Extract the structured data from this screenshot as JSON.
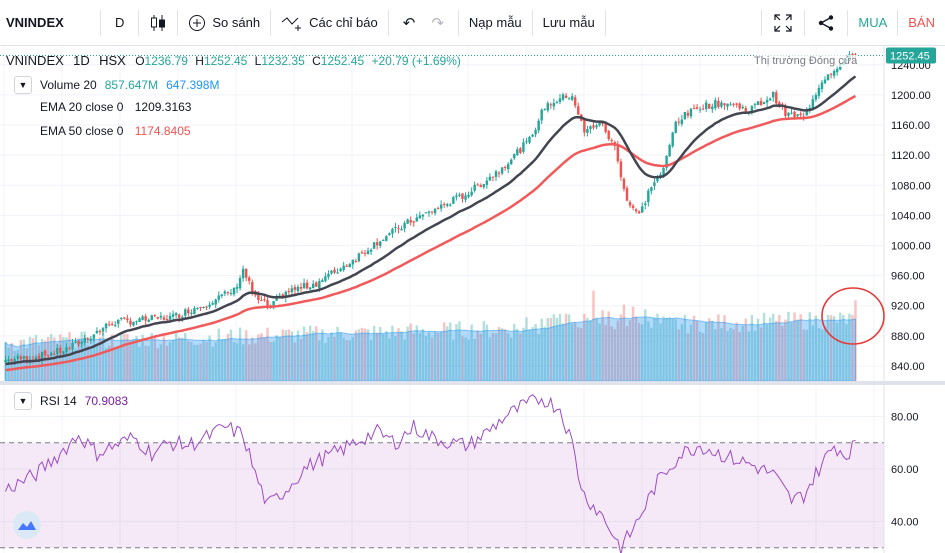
{
  "toolbar": {
    "symbol": "VNINDEX",
    "interval": "D",
    "compare": "So sánh",
    "indicators": "Các chỉ báo",
    "load_template": "Nạp mẫu",
    "save_template": "Lưu mẫu",
    "buy": "MUA",
    "sell": "BÁN"
  },
  "legend": {
    "symbol": "VNINDEX",
    "interval": "1D",
    "exchange": "HSX",
    "open_label": "O",
    "open": "1236.79",
    "high_label": "H",
    "high": "1252.45",
    "low_label": "L",
    "low": "1232.35",
    "close_label": "C",
    "close": "1252.45",
    "change": "+20.79 (+1.69%)",
    "volume_label": "Volume 20",
    "volume_value": "857.647M",
    "volume_ma": "647.398M",
    "ema20_label": "EMA 20 close 0",
    "ema20_value": "1209.3163",
    "ema50_label": "EMA 50 close 0",
    "ema50_value": "1174.8405",
    "rsi_label": "RSI 14",
    "rsi_value": "70.9083",
    "market_status": "Thị trường Đóng cửa"
  },
  "colors": {
    "up": "#26a69a",
    "down": "#ef5350",
    "ema20": "#434651",
    "ema50": "#f05a5a",
    "vol_ma": "#2196f3",
    "rsi": "#9c4cc3",
    "last_price_bg": "#26a69a",
    "annotation": "#e53935"
  },
  "chart_data": [
    {
      "type": "candlestick",
      "name": "VNINDEX",
      "price_axis": {
        "ticks": [
          840,
          880,
          920,
          960,
          1000,
          1040,
          1080,
          1120,
          1160,
          1200,
          1240
        ],
        "range": [
          820,
          1265
        ]
      },
      "last_price_label": "1252.45",
      "anchors": [
        [
          0,
          848
        ],
        [
          10,
          852
        ],
        [
          20,
          862
        ],
        [
          28,
          880
        ],
        [
          35,
          898
        ],
        [
          42,
          900
        ],
        [
          55,
          905
        ],
        [
          65,
          922
        ],
        [
          75,
          940
        ],
        [
          78,
          968
        ],
        [
          82,
          930
        ],
        [
          87,
          918
        ],
        [
          92,
          938
        ],
        [
          102,
          950
        ],
        [
          112,
          975
        ],
        [
          122,
          1005
        ],
        [
          132,
          1030
        ],
        [
          142,
          1050
        ],
        [
          152,
          1070
        ],
        [
          162,
          1100
        ],
        [
          172,
          1140
        ],
        [
          177,
          1185
        ],
        [
          182,
          1195
        ],
        [
          186,
          1200
        ],
        [
          190,
          1150
        ],
        [
          195,
          1165
        ],
        [
          200,
          1130
        ],
        [
          204,
          1060
        ],
        [
          208,
          1040
        ],
        [
          212,
          1080
        ],
        [
          216,
          1100
        ],
        [
          220,
          1165
        ],
        [
          228,
          1185
        ],
        [
          236,
          1190
        ],
        [
          244,
          1180
        ],
        [
          252,
          1200
        ],
        [
          256,
          1175
        ],
        [
          262,
          1170
        ],
        [
          268,
          1220
        ],
        [
          272,
          1235
        ],
        [
          278,
          1252
        ]
      ]
    },
    {
      "type": "line",
      "name": "EMA 20",
      "last_value": 1209.3163
    },
    {
      "type": "line",
      "name": "EMA 50",
      "last_value": 1174.8405
    },
    {
      "type": "bar",
      "name": "Volume 20",
      "last_value": "857.647M",
      "ma_value": "647.398M"
    },
    {
      "type": "line",
      "name": "RSI 14",
      "last_value": 70.9083,
      "axis": {
        "ticks": [
          40,
          60,
          80
        ],
        "range": [
          28,
          92
        ]
      },
      "bands": [
        30,
        70
      ],
      "anchors": [
        [
          0,
          52
        ],
        [
          10,
          58
        ],
        [
          18,
          66
        ],
        [
          24,
          73
        ],
        [
          30,
          66
        ],
        [
          36,
          69
        ],
        [
          42,
          72
        ],
        [
          48,
          66
        ],
        [
          54,
          70
        ],
        [
          60,
          69
        ],
        [
          66,
          72
        ],
        [
          72,
          76
        ],
        [
          78,
          73
        ],
        [
          82,
          58
        ],
        [
          86,
          46
        ],
        [
          92,
          52
        ],
        [
          98,
          60
        ],
        [
          104,
          64
        ],
        [
          110,
          67
        ],
        [
          116,
          71
        ],
        [
          122,
          74
        ],
        [
          128,
          70
        ],
        [
          134,
          76
        ],
        [
          140,
          72
        ],
        [
          146,
          70
        ],
        [
          152,
          69
        ],
        [
          158,
          74
        ],
        [
          164,
          80
        ],
        [
          170,
          84
        ],
        [
          176,
          87
        ],
        [
          182,
          83
        ],
        [
          186,
          70
        ],
        [
          188,
          58
        ],
        [
          190,
          50
        ],
        [
          196,
          42
        ],
        [
          202,
          30
        ],
        [
          206,
          37
        ],
        [
          210,
          46
        ],
        [
          214,
          55
        ],
        [
          218,
          61
        ],
        [
          222,
          66
        ],
        [
          228,
          69
        ],
        [
          236,
          65
        ],
        [
          244,
          62
        ],
        [
          252,
          58
        ],
        [
          258,
          48
        ],
        [
          262,
          50
        ],
        [
          268,
          62
        ],
        [
          272,
          69
        ],
        [
          276,
          65
        ],
        [
          279,
          71
        ]
      ]
    }
  ]
}
